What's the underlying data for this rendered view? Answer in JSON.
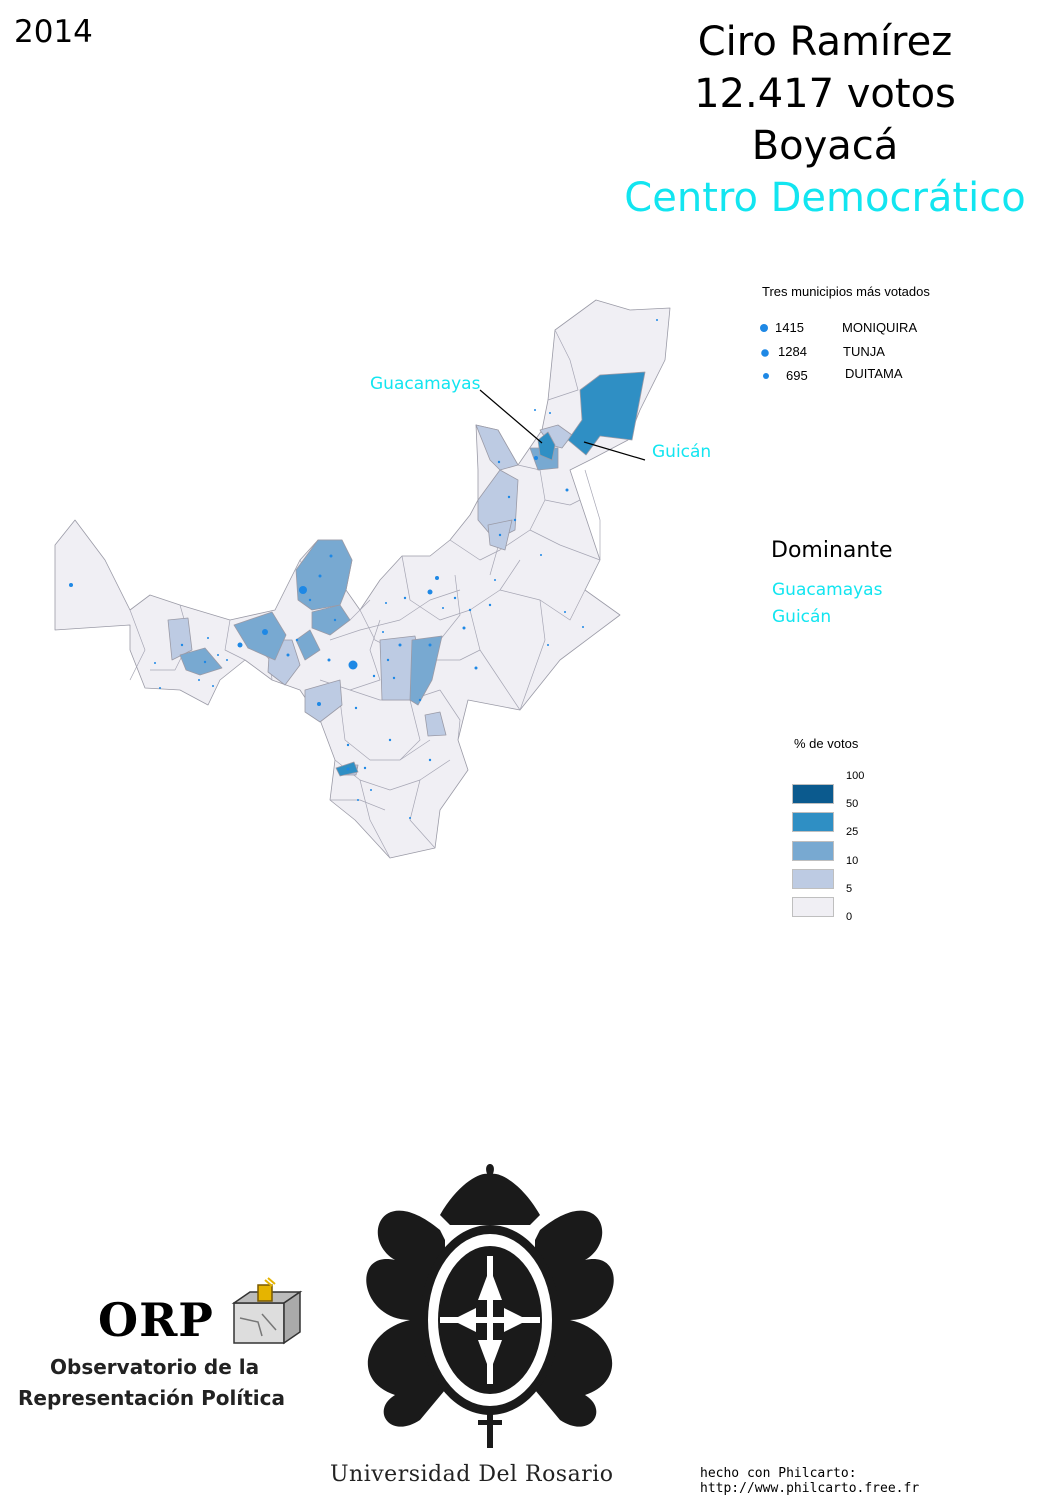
{
  "header": {
    "year": "2014",
    "candidate": "Ciro Ramírez",
    "votes": "12.417 votos",
    "department": "Boyacá",
    "party": "Centro Democrático"
  },
  "colors": {
    "party": "#12e5f0",
    "bubble": "#1e88e5",
    "classes": [
      "#0b5a8e",
      "#2f8fc4",
      "#78a9d1",
      "#bdcbe3",
      "#f0eff4"
    ],
    "border": "#9a9aa6"
  },
  "top_municipalities": {
    "title": "Tres municipios más votados",
    "items": [
      {
        "votes": "1415",
        "name": "MONIQUIRA"
      },
      {
        "votes": "1284",
        "name": "TUNJA"
      },
      {
        "votes": "695",
        "name": "DUITAMA"
      }
    ]
  },
  "map_labels": {
    "guacamayas": "Guacamayas",
    "guican": "Guicán"
  },
  "dominant": {
    "title": "Dominante",
    "items": [
      "Guacamayas",
      "Guicán"
    ]
  },
  "legend": {
    "title": "% de votos",
    "breaks": [
      "100",
      "50",
      "25",
      "10",
      "5",
      "0"
    ]
  },
  "logos": {
    "orp_acronym": "ORP",
    "orp_line1": "Observatorio de la",
    "orp_line2": "Representación Política",
    "university": "Universidad Del Rosario"
  },
  "footer": {
    "credit": "hecho con Philcarto: http://www.philcarto.free.fr"
  }
}
